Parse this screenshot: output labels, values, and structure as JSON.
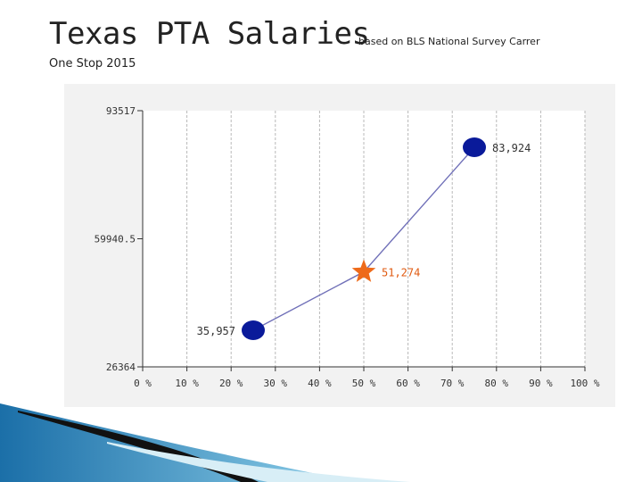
{
  "header": {
    "title": "Texas PTA Salaries",
    "subtitle": "based on BLS National Survey Carrer",
    "source": "One Stop 2015"
  },
  "chart_data": {
    "type": "line",
    "title": "",
    "xlabel": "",
    "ylabel": "",
    "x_ticks": [
      "0 %",
      "10 %",
      "20 %",
      "30 %",
      "40 %",
      "50 %",
      "60 %",
      "70 %",
      "80 %",
      "90 %",
      "100 %"
    ],
    "y_ticks": [
      "93517",
      "59940.5",
      "26364"
    ],
    "xlim": [
      0,
      100
    ],
    "ylim": [
      26364,
      93517
    ],
    "grid": "vertical-dashed",
    "series": [
      {
        "x": [
          25,
          50,
          75
        ],
        "y": [
          35957,
          51274,
          83924
        ],
        "labels": [
          "35,957",
          "51,274",
          "83,924"
        ],
        "markers": [
          "circle",
          "star",
          "circle"
        ]
      }
    ],
    "colors": {
      "line": "#7070b8",
      "circle": "#0a1a9a",
      "star": "#ee6a1a",
      "label": "#333333",
      "median_label": "#e05a10",
      "axis": "#333333"
    }
  }
}
